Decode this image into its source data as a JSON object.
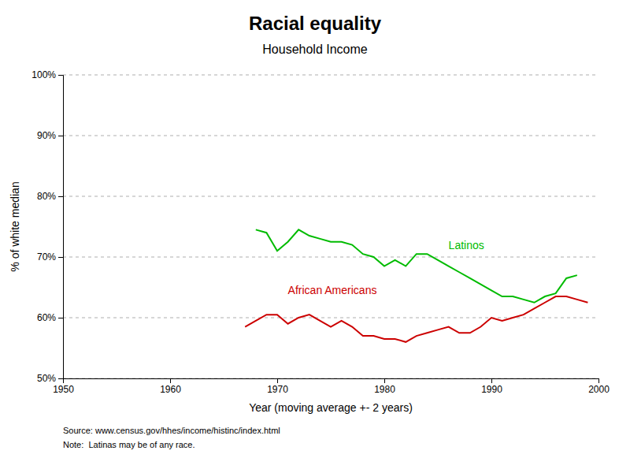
{
  "chart_data": {
    "type": "line",
    "title": "Racial equality",
    "subtitle": "Household Income",
    "x_label": "Year (moving average +- 2 years)",
    "y_label": "% of white median",
    "xlim": [
      1950,
      2000
    ],
    "ylim": [
      50,
      100
    ],
    "xticks": [
      1950,
      1960,
      1970,
      1980,
      1990,
      2000
    ],
    "yticks": [
      {
        "value": 50,
        "label": "50%"
      },
      {
        "value": 60,
        "label": "60%"
      },
      {
        "value": 70,
        "label": "70%"
      },
      {
        "value": 80,
        "label": "80%"
      },
      {
        "value": 90,
        "label": "90%"
      },
      {
        "value": 100,
        "label": "100%"
      }
    ],
    "grid": true,
    "series": [
      {
        "color": "#00bb00",
        "x": [
          1968,
          1969,
          1970,
          1971,
          1972,
          1973,
          1974,
          1975,
          1976,
          1977,
          1978,
          1979,
          1980,
          1981,
          1982,
          1983,
          1984,
          1985,
          1986,
          1987,
          1988,
          1989,
          1990,
          1991,
          1992,
          1993,
          1994,
          1995,
          1996,
          1997,
          1998
        ],
        "values": [
          74.5,
          74.0,
          71.0,
          72.5,
          74.5,
          73.5,
          73.0,
          72.5,
          72.5,
          72.0,
          70.5,
          70.0,
          68.5,
          69.5,
          68.5,
          70.5,
          70.5,
          69.5,
          68.5,
          67.5,
          66.5,
          65.5,
          64.5,
          63.5,
          63.5,
          63.0,
          62.5,
          63.5,
          64.0,
          66.5,
          67.0
        ]
      },
      {
        "color": "#cc0000",
        "x": [
          1967,
          1968,
          1969,
          1970,
          1971,
          1972,
          1973,
          1974,
          1975,
          1976,
          1977,
          1978,
          1979,
          1980,
          1981,
          1982,
          1983,
          1984,
          1985,
          1986,
          1987,
          1988,
          1989,
          1990,
          1991,
          1992,
          1993,
          1994,
          1995,
          1996,
          1997,
          1998,
          1999
        ],
        "values": [
          58.5,
          59.5,
          60.5,
          60.5,
          59.0,
          60.0,
          60.5,
          59.5,
          58.5,
          59.5,
          58.5,
          57.0,
          57.0,
          56.5,
          56.5,
          56.0,
          57.0,
          57.5,
          58.0,
          58.5,
          57.5,
          57.5,
          58.5,
          60.0,
          59.5,
          60.0,
          60.5,
          61.5,
          62.5,
          63.5,
          63.5,
          63.0,
          62.5
        ]
      }
    ],
    "annotations": [
      {
        "text": "Latinos",
        "x": 1986,
        "y": 72.0,
        "color": "#00bb00"
      },
      {
        "text": "African Americans",
        "x": 1971,
        "y": 64.5,
        "color": "#cc0000"
      }
    ],
    "source": "Source: www.census.gov/hhes/income/histinc/index.html",
    "note": "Note:  Latinas may be of any race."
  }
}
